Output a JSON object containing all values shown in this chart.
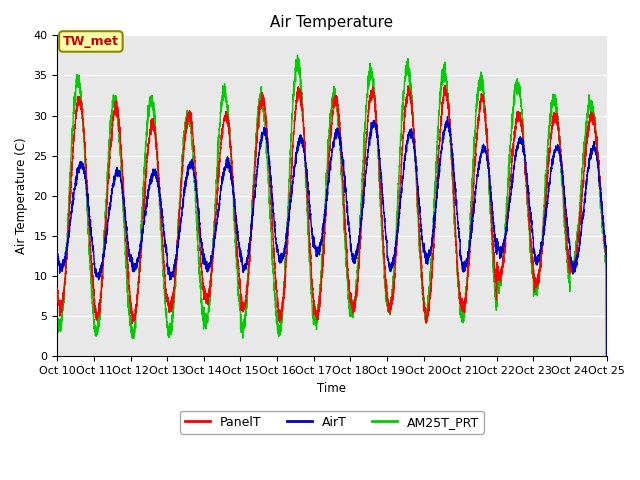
{
  "title": "Air Temperature",
  "ylabel": "Air Temperature (C)",
  "xlabel": "Time",
  "ylim": [
    0,
    40
  ],
  "xlim": [
    10,
    25
  ],
  "facecolor": "#e8e8e8",
  "annotation_text": "TW_met",
  "annotation_color": "#cc0000",
  "annotation_bg": "#ffffaa",
  "annotation_border": "#888800",
  "x_tick_positions": [
    10,
    11,
    12,
    13,
    14,
    15,
    16,
    17,
    18,
    19,
    20,
    21,
    22,
    23,
    24,
    25
  ],
  "x_tick_labels": [
    "Oct 10",
    "Oct 11",
    "Oct 12",
    "Oct 13",
    "Oct 14",
    "Oct 15",
    "Oct 16",
    "Oct 17",
    "Oct 18",
    "Oct 19",
    "Oct 20",
    "Oct 21",
    "Oct 22",
    "Oct 23",
    "Oct 24",
    "Oct 25"
  ],
  "y_ticks": [
    0,
    5,
    10,
    15,
    20,
    25,
    30,
    35,
    40
  ],
  "legend_labels": [
    "PanelT",
    "AirT",
    "AM25T_PRT"
  ],
  "legend_colors": [
    "#ff0000",
    "#0000cc",
    "#00cc00"
  ],
  "n_days": 15,
  "panel_peaks": [
    32,
    31,
    29,
    30,
    30,
    32,
    33,
    32,
    33,
    33,
    33,
    32,
    30,
    30,
    30
  ],
  "panel_troughs": [
    6,
    5,
    5,
    6,
    7,
    6,
    5,
    5,
    6,
    6,
    5,
    6,
    10,
    9,
    11
  ],
  "air_peaks": [
    24,
    23,
    23,
    24,
    24,
    28,
    27,
    28,
    29,
    28,
    29,
    26,
    27,
    26,
    26
  ],
  "air_troughs": [
    11,
    10,
    11,
    10,
    11,
    11,
    12,
    13,
    12,
    11,
    12,
    11,
    13,
    12,
    11
  ],
  "am25_peaks": [
    34.5,
    32,
    32,
    30,
    33,
    32,
    36.5,
    32.5,
    35.5,
    36,
    35.5,
    34.5,
    34,
    32,
    31.5
  ],
  "am25_troughs": [
    3.5,
    3,
    3,
    3,
    4.5,
    3.5,
    3,
    4.5,
    5.5,
    6,
    5.5,
    5,
    9,
    8,
    11
  ]
}
